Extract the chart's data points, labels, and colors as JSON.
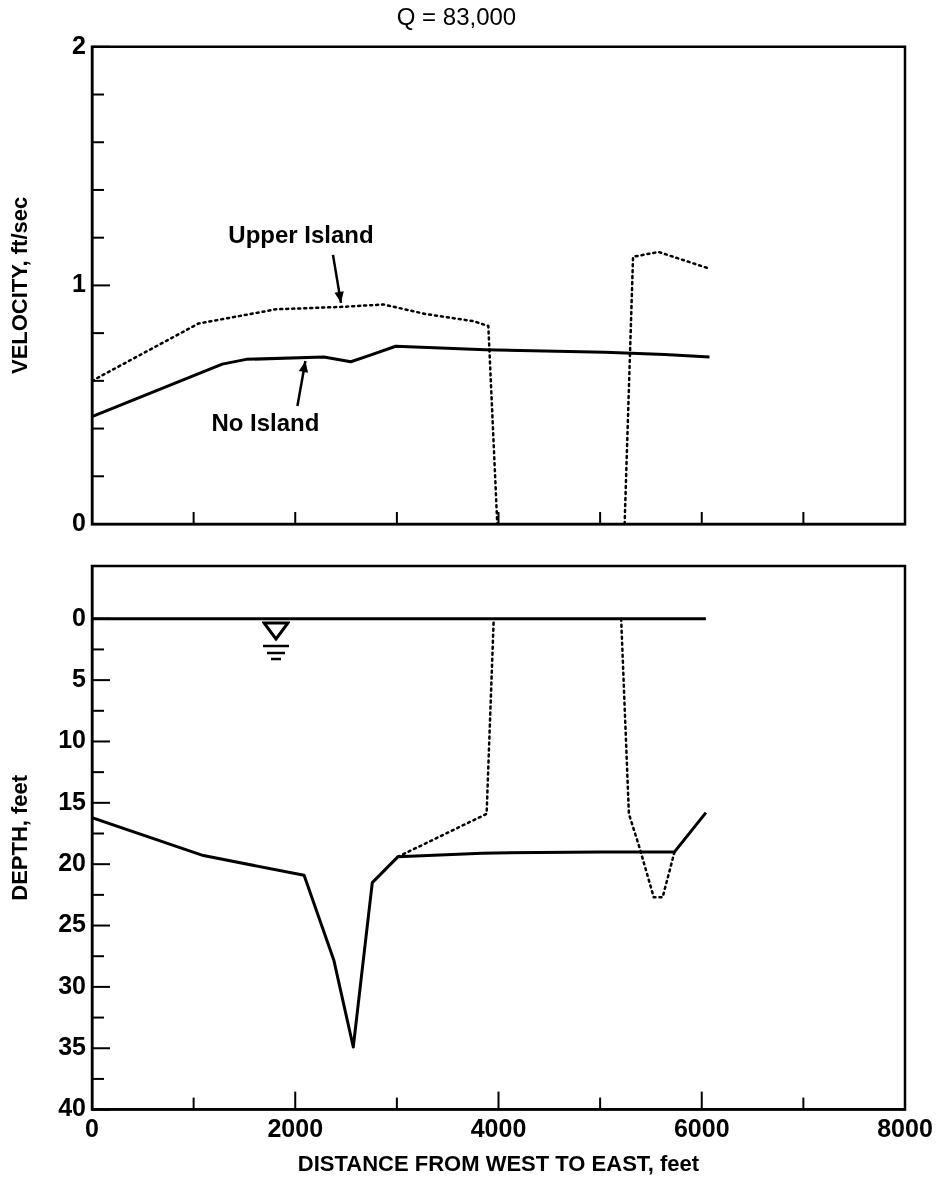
{
  "chart_data": [
    {
      "type": "line",
      "title": "Q = 83,000",
      "ylabel": "VELOCITY, ft/sec",
      "xlim": [
        0,
        8000
      ],
      "ylim": [
        0,
        2
      ],
      "xticks": [
        {
          "value": 0,
          "label": null
        },
        {
          "value": 1000,
          "label": null
        },
        {
          "value": 2000,
          "label": null
        },
        {
          "value": 3000,
          "label": null
        },
        {
          "value": 4000,
          "label": null
        },
        {
          "value": 5000,
          "label": null
        },
        {
          "value": 6000,
          "label": null
        },
        {
          "value": 7000,
          "label": null
        },
        {
          "value": 8000,
          "label": null
        }
      ],
      "yticks": [
        0,
        {
          "value": 0.2,
          "label": null
        },
        {
          "value": 0.4,
          "label": null
        },
        {
          "value": 0.6,
          "label": null
        },
        {
          "value": 0.8,
          "label": null
        },
        1,
        {
          "value": 1.2,
          "label": null
        },
        {
          "value": 1.4,
          "label": null
        },
        {
          "value": 1.6,
          "label": null
        },
        {
          "value": 1.8,
          "label": null
        },
        2
      ],
      "tick_labels": "y",
      "grid": false,
      "legend": false,
      "marker": "none",
      "series": [
        {
          "color": "#000000",
          "line_style": "solid",
          "x": [
            0,
            1282,
            1517,
            2282,
            2547,
            2753,
            2988,
            3870,
            5047,
            5635,
            6076
          ],
          "values": [
            0.45,
            0.67,
            0.69,
            0.7,
            0.68,
            0.71,
            0.745,
            0.73,
            0.72,
            0.71,
            0.7
          ]
        },
        {
          "color": "#000000",
          "line_style": "dotted",
          "x": [
            0,
            1047,
            1812,
            2459,
            2870,
            3282,
            3753,
            3900,
            3988,
            4600,
            5241,
            5324,
            5576,
            6076
          ],
          "values": [
            0.6,
            0.84,
            0.9,
            0.91,
            0.92,
            0.88,
            0.85,
            0.83,
            0,
            null,
            0,
            1.12,
            1.14,
            1.07
          ]
        }
      ],
      "annotations": [
        {
          "text": "Upper Island",
          "x": 2450,
          "y": 0.91
        },
        {
          "text": "No Island",
          "x": 2100,
          "y": 0.7
        }
      ]
    },
    {
      "type": "line",
      "xlabel": "DISTANCE FROM WEST TO EAST, feet",
      "ylabel": "DEPTH, feet",
      "xlim": [
        0,
        8000
      ],
      "ylim": [
        40,
        -4.3
      ],
      "xticks": [
        0,
        {
          "value": 1000,
          "label": null
        },
        2000,
        {
          "value": 3000,
          "label": null
        },
        4000,
        {
          "value": 5000,
          "label": null
        },
        6000,
        {
          "value": 7000,
          "label": null
        },
        8000
      ],
      "yticks": [
        0,
        {
          "value": 2.5,
          "label": null
        },
        5,
        {
          "value": 7.5,
          "label": null
        },
        10,
        {
          "value": 12.5,
          "label": null
        },
        15,
        {
          "value": 17.5,
          "label": null
        },
        20,
        {
          "value": 22.5,
          "label": null
        },
        25,
        {
          "value": 27.5,
          "label": null
        },
        30,
        {
          "value": 32.5,
          "label": null
        },
        35,
        {
          "value": 37.5,
          "label": null
        },
        40
      ],
      "grid": false,
      "legend": false,
      "marker": "none",
      "series": [
        {
          "color": "#000000",
          "line_style": "solid",
          "x": [
            0,
            6041
          ],
          "values": [
            0,
            0
          ]
        },
        {
          "color": "#000000",
          "line_style": "solid",
          "x": [
            0,
            1096,
            2087,
            2379,
            2571,
            2758,
            3009,
            3837,
            5003,
            5732,
            6041
          ],
          "values": [
            16.2,
            19.3,
            20.9,
            27.8,
            34.9,
            21.5,
            19.4,
            19.1,
            19.0,
            19.0,
            15.8
          ]
        },
        {
          "color": "#000000",
          "line_style": "dotted",
          "x": [
            3009,
            3883,
            3953,
            4600,
            5207,
            5283,
            5382,
            5528,
            5615,
            5732
          ],
          "values": [
            19.4,
            15.9,
            0,
            null,
            0,
            15.9,
            18.5,
            22.7,
            22.7,
            19.0
          ]
        }
      ]
    }
  ]
}
